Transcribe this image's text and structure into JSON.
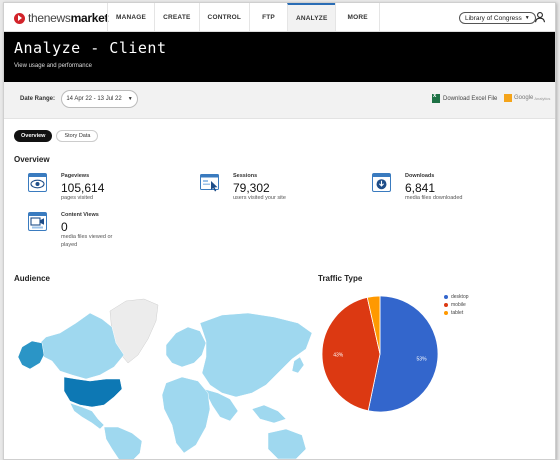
{
  "nav": {
    "logo_left": "thenews",
    "logo_right": "market",
    "items": [
      "MANAGE",
      "CREATE",
      "CONTROL",
      "FTP",
      "ANALYZE",
      "MORE"
    ],
    "active": "ANALYZE",
    "org": "Library of Congress"
  },
  "header": {
    "title": "Analyze - Client",
    "subtitle": "View usage and performance"
  },
  "filters": {
    "date_label": "Date Range:",
    "date_value": "14 Apr 22 - 13 Jul 22",
    "download_excel": "Download Excel File",
    "google_analytics": "Google",
    "google_analytics_sub": "Analytics"
  },
  "tabs": {
    "overview": "Overview",
    "story_data": "Story Data"
  },
  "overview": {
    "title": "Overview",
    "pageviews": {
      "label": "Pageviews",
      "value": "105,614",
      "desc": "pages visited",
      "icon": "eye-icon"
    },
    "sessions": {
      "label": "Sessions",
      "value": "79,302",
      "desc": "users visited your site",
      "icon": "browser-cursor-icon"
    },
    "downloads": {
      "label": "Downloads",
      "value": "6,841",
      "desc": "media files downloaded",
      "icon": "download-icon"
    },
    "content_views": {
      "label": "Content Views",
      "value": "0",
      "desc": "media files viewed or played",
      "icon": "video-icon"
    }
  },
  "audience": {
    "title": "Audience"
  },
  "traffic": {
    "title": "Traffic Type"
  },
  "chart_data": {
    "type": "pie",
    "title": "Traffic Type",
    "series": [
      {
        "name": "desktop",
        "value": 53,
        "label": "53%",
        "color": "#3366cc"
      },
      {
        "name": "mobile",
        "value": 43,
        "label": "43%",
        "color": "#dc3912"
      },
      {
        "name": "tablet",
        "value": 3.5,
        "label": "",
        "color": "#ff9900"
      }
    ],
    "legend_position": "right"
  }
}
